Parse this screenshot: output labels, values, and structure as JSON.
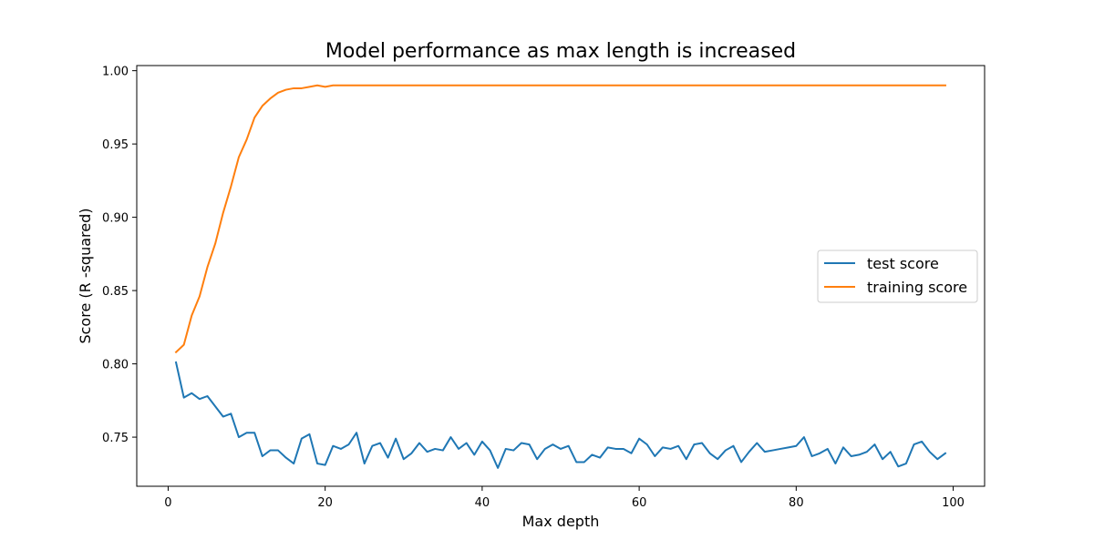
{
  "chart_data": {
    "type": "line",
    "title": "Model performance as max length is increased",
    "xlabel": "Max depth",
    "ylabel": "Score (R -squared)",
    "xlim": [
      -4,
      104
    ],
    "ylim": [
      0.7165,
      1.0035
    ],
    "x_ticks": [
      0,
      20,
      40,
      60,
      80,
      100
    ],
    "x_tick_labels": [
      "0",
      "20",
      "40",
      "60",
      "80",
      "100"
    ],
    "y_ticks": [
      0.75,
      0.8,
      0.85,
      0.9,
      0.95,
      1.0
    ],
    "y_tick_labels": [
      "0.75",
      "0.80",
      "0.85",
      "0.90",
      "0.95",
      "1.00"
    ],
    "grid": false,
    "legend_position": "center-right",
    "x": [
      1,
      2,
      3,
      4,
      5,
      6,
      7,
      8,
      9,
      10,
      11,
      12,
      13,
      14,
      15,
      16,
      17,
      18,
      19,
      20,
      21,
      22,
      23,
      24,
      25,
      26,
      27,
      28,
      29,
      30,
      31,
      32,
      33,
      34,
      35,
      36,
      37,
      38,
      39,
      40,
      41,
      42,
      43,
      44,
      45,
      46,
      47,
      48,
      49,
      50,
      51,
      52,
      53,
      54,
      55,
      56,
      57,
      58,
      59,
      60,
      61,
      62,
      63,
      64,
      65,
      66,
      67,
      68,
      69,
      70,
      71,
      72,
      73,
      74,
      75,
      76,
      77,
      78,
      79,
      80,
      81,
      82,
      83,
      84,
      85,
      86,
      87,
      88,
      89,
      90,
      91,
      92,
      93,
      94,
      95,
      96,
      97,
      98,
      99
    ],
    "series": [
      {
        "name": "test score",
        "color": "#1f77b4",
        "values": [
          0.801,
          0.777,
          0.78,
          0.776,
          0.778,
          0.771,
          0.764,
          0.766,
          0.75,
          0.753,
          0.753,
          0.737,
          0.741,
          0.741,
          0.736,
          0.732,
          0.749,
          0.752,
          0.732,
          0.731,
          0.744,
          0.742,
          0.745,
          0.753,
          0.732,
          0.744,
          0.746,
          0.736,
          0.749,
          0.735,
          0.739,
          0.746,
          0.74,
          0.742,
          0.741,
          0.75,
          0.742,
          0.746,
          0.738,
          0.747,
          0.741,
          0.729,
          0.742,
          0.741,
          0.746,
          0.745,
          0.735,
          0.742,
          0.745,
          0.742,
          0.744,
          0.733,
          0.733,
          0.738,
          0.736,
          0.743,
          0.742,
          0.742,
          0.739,
          0.749,
          0.745,
          0.737,
          0.743,
          0.742,
          0.744,
          0.735,
          0.745,
          0.746,
          0.739,
          0.735,
          0.741,
          0.744,
          0.733,
          0.74,
          0.746,
          0.74,
          0.741,
          0.742,
          0.743,
          0.744,
          0.75,
          0.737,
          0.739,
          0.742,
          0.732,
          0.743,
          0.737,
          0.738,
          0.74,
          0.745,
          0.735,
          0.74,
          0.73,
          0.732,
          0.745,
          0.747,
          0.74,
          0.735,
          0.739
        ]
      },
      {
        "name": "training score",
        "color": "#ff7f0e",
        "values": [
          0.808,
          0.813,
          0.833,
          0.846,
          0.866,
          0.882,
          0.903,
          0.921,
          0.941,
          0.953,
          0.968,
          0.976,
          0.981,
          0.985,
          0.987,
          0.988,
          0.988,
          0.989,
          0.99,
          0.989,
          0.99,
          0.99,
          0.99,
          0.99,
          0.99,
          0.99,
          0.99,
          0.99,
          0.99,
          0.99,
          0.99,
          0.99,
          0.99,
          0.99,
          0.99,
          0.99,
          0.99,
          0.99,
          0.99,
          0.99,
          0.99,
          0.99,
          0.99,
          0.99,
          0.99,
          0.99,
          0.99,
          0.99,
          0.99,
          0.99,
          0.99,
          0.99,
          0.99,
          0.99,
          0.99,
          0.99,
          0.99,
          0.99,
          0.99,
          0.99,
          0.99,
          0.99,
          0.99,
          0.99,
          0.99,
          0.99,
          0.99,
          0.99,
          0.99,
          0.99,
          0.99,
          0.99,
          0.99,
          0.99,
          0.99,
          0.99,
          0.99,
          0.99,
          0.99,
          0.99,
          0.99,
          0.99,
          0.99,
          0.99,
          0.99,
          0.99,
          0.99,
          0.99,
          0.99,
          0.99,
          0.99,
          0.99,
          0.99,
          0.99,
          0.99,
          0.99,
          0.99,
          0.99,
          0.99
        ]
      }
    ]
  }
}
